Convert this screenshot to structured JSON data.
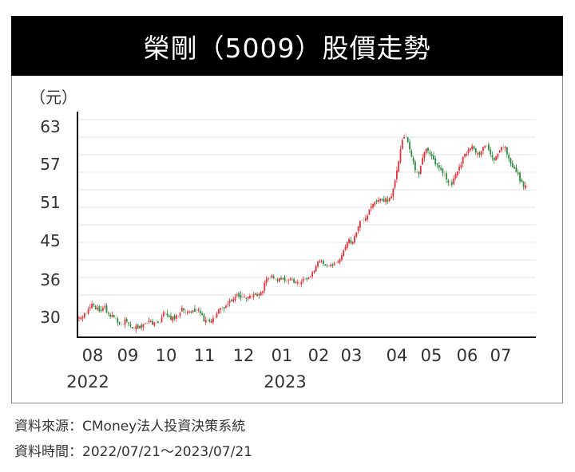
{
  "title": "榮剛（5009）股價走勢",
  "unit_label": "（元）",
  "footer": {
    "source": "資料來源：CMoney法人投資決策系統",
    "period": "資料時間：2022/07/21～2023/07/21"
  },
  "colors": {
    "up": "#e0333a",
    "down": "#2e8b3d",
    "neutral": "#c8b8b0",
    "grid": "#e6e6e6",
    "axis": "#111111",
    "title_bg": "#000000"
  },
  "chart_data": {
    "type": "candlestick",
    "title": "榮剛（5009）股價走勢",
    "xlabel": "",
    "ylabel": "（元）",
    "y_ticks": [
      63,
      57,
      51,
      45,
      36,
      30
    ],
    "x_ticks": [
      "08",
      "09",
      "10",
      "11",
      "12",
      "01",
      "02",
      "03",
      "04",
      "05",
      "06",
      "07"
    ],
    "year_labels": [
      {
        "label": "2022",
        "under": "08"
      },
      {
        "label": "2023",
        "under": "01"
      }
    ],
    "grid": true,
    "legend": "none",
    "period": "2022/07/21 ~ 2023/07/21",
    "source": "CMoney法人投資決策系統",
    "approx_monthly_close": [
      {
        "month": "2022-08",
        "close": 31.0
      },
      {
        "month": "2022-09",
        "close": 29.5
      },
      {
        "month": "2022-10",
        "close": 30.5
      },
      {
        "month": "2022-11",
        "close": 29.5
      },
      {
        "month": "2022-12",
        "close": 33.5
      },
      {
        "month": "2023-01",
        "close": 35.5
      },
      {
        "month": "2023-02",
        "close": 39.0
      },
      {
        "month": "2023-03",
        "close": 44.5
      },
      {
        "month": "2023-04",
        "close": 57.0
      },
      {
        "month": "2023-05",
        "close": 56.0
      },
      {
        "month": "2023-06",
        "close": 59.5
      },
      {
        "month": "2023-07",
        "close": 53.5
      }
    ],
    "range": {
      "low": 28.3,
      "high": 63.0,
      "start_close": 29.8,
      "end_close": 53.3
    }
  }
}
